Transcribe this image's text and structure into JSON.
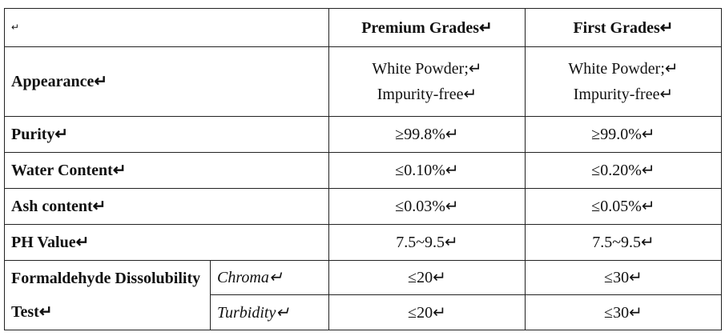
{
  "table": {
    "corner": "↵",
    "columns": [
      "Premium Grades↵",
      "First Grades↵"
    ],
    "appearance": {
      "label": "Appearance↵",
      "premium": [
        "White Powder;↵",
        "Impurity-free↵"
      ],
      "first": [
        "White Powder;↵",
        "Impurity-free↵"
      ]
    },
    "rows": [
      [
        "Purity↵",
        "≥99.8%↵",
        "≥99.0%↵"
      ],
      [
        "Water Content↵",
        "≤0.10%↵",
        "≤0.20%↵"
      ],
      [
        "Ash content↵",
        "≤0.03%↵",
        "≤0.05%↵"
      ],
      [
        "PH Value↵",
        "7.5~9.5↵",
        "7.5~9.5↵"
      ]
    ],
    "group": {
      "label": "Formaldehyde Dissolubility Test↵",
      "rows": [
        [
          "Chroma↵",
          "≤20↵",
          "≤30↵"
        ],
        [
          "Turbidity↵",
          "≤20↵",
          "≤30↵"
        ]
      ]
    }
  }
}
